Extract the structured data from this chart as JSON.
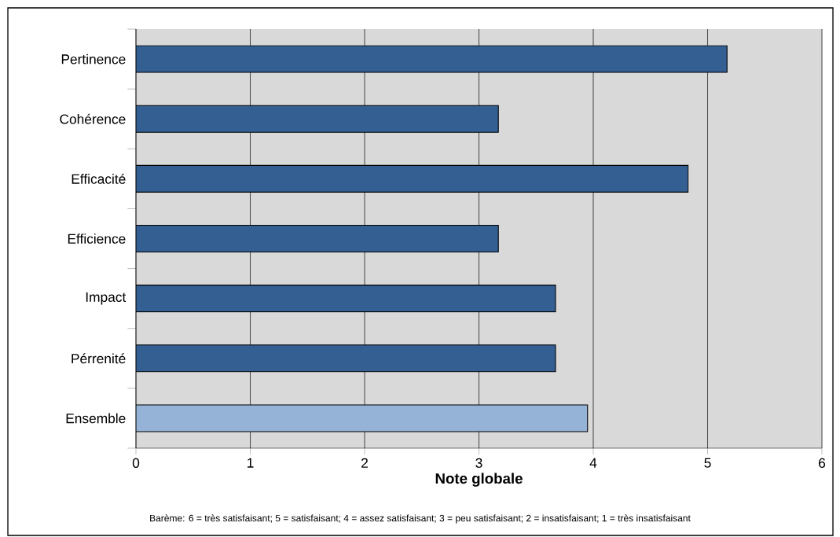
{
  "chart_data": {
    "type": "bar",
    "orientation": "horizontal",
    "categories": [
      "Pertinence",
      "Cohérence",
      "Efficacité",
      "Efficience",
      "Impact",
      "Pérrenité",
      "Ensemble"
    ],
    "values": [
      5.17,
      3.17,
      4.83,
      3.17,
      3.67,
      3.67,
      3.95
    ],
    "colors": [
      "#335f92",
      "#335f92",
      "#335f92",
      "#335f92",
      "#335f92",
      "#335f92",
      "#95b3d7"
    ],
    "xlabel": "Note globale",
    "xlim": [
      0,
      6
    ],
    "xticks": [
      0,
      1,
      2,
      3,
      4,
      5,
      6
    ],
    "grid": "x",
    "annotations": [
      "Barème:  6 = très satisfaisant; 5 = satisfaisant; 4 = assez satisfaisant; 3 = peu satisfaisant; 2 = insatisfaisant; 1  = très insatisfaisant"
    ]
  }
}
